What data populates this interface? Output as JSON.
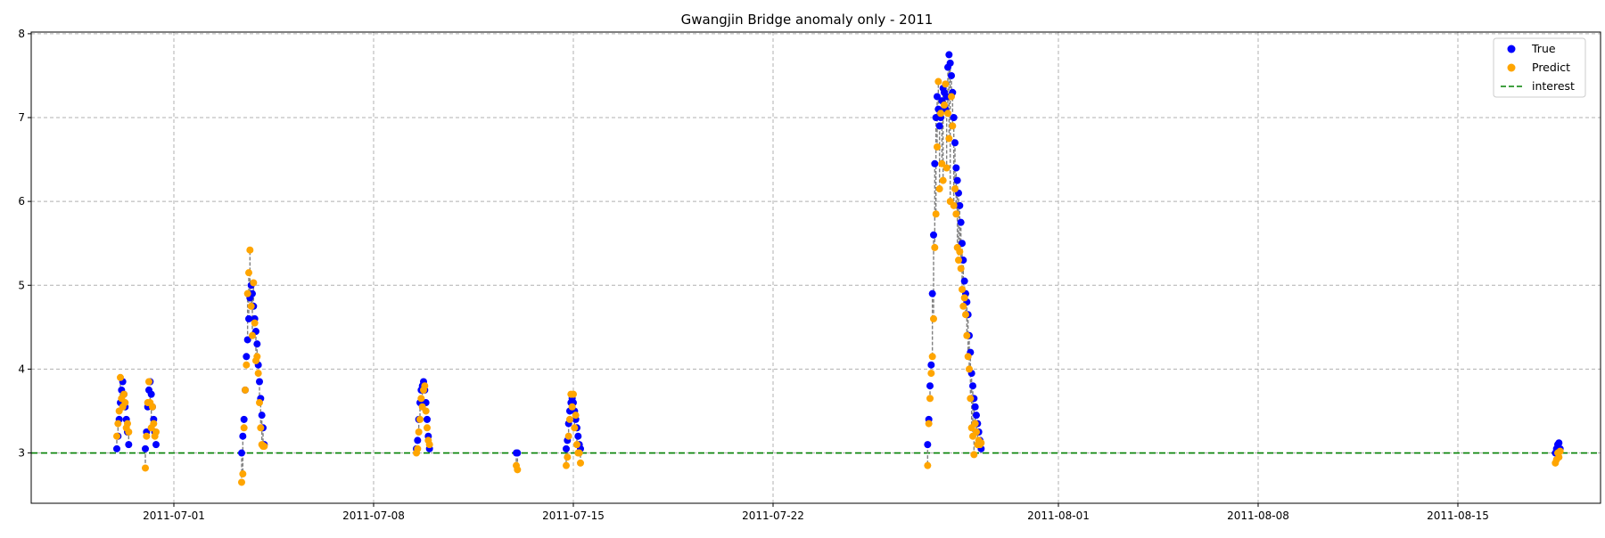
{
  "chart_data": {
    "type": "scatter",
    "title": "Gwangjin Bridge anomaly only - 2011",
    "xlabel": "",
    "ylabel": "",
    "xlim": [
      "2011-06-26",
      "2011-08-20"
    ],
    "ylim": [
      2.4,
      8.02
    ],
    "x_ticks": [
      "2011-07-01",
      "2011-07-08",
      "2011-07-15",
      "2011-07-22",
      "2011-08-01",
      "2011-08-08",
      "2011-08-15"
    ],
    "y_ticks": [
      3,
      4,
      5,
      6,
      7,
      8
    ],
    "grid": true,
    "legend_position": "top-right",
    "threshold": {
      "name": "interest",
      "value": 3.0,
      "color": "#008000"
    },
    "series": [
      {
        "name": "True",
        "color": "#0000ff",
        "points": [
          [
            "2011-06-29 00:00",
            3.05
          ],
          [
            "2011-06-29 01:00",
            3.2
          ],
          [
            "2011-06-29 02:00",
            3.4
          ],
          [
            "2011-06-29 03:00",
            3.6
          ],
          [
            "2011-06-29 04:00",
            3.75
          ],
          [
            "2011-06-29 05:00",
            3.85
          ],
          [
            "2011-06-29 06:00",
            3.7
          ],
          [
            "2011-06-29 07:00",
            3.55
          ],
          [
            "2011-06-29 08:00",
            3.4
          ],
          [
            "2011-06-29 09:00",
            3.25
          ],
          [
            "2011-06-29 10:00",
            3.1
          ],
          [
            "2011-06-30 00:00",
            3.05
          ],
          [
            "2011-06-30 01:00",
            3.25
          ],
          [
            "2011-06-30 02:00",
            3.55
          ],
          [
            "2011-06-30 03:00",
            3.75
          ],
          [
            "2011-06-30 04:00",
            3.85
          ],
          [
            "2011-06-30 05:00",
            3.7
          ],
          [
            "2011-06-30 06:00",
            3.55
          ],
          [
            "2011-06-30 07:00",
            3.4
          ],
          [
            "2011-06-30 08:00",
            3.25
          ],
          [
            "2011-06-30 09:00",
            3.1
          ],
          [
            "2011-07-03 09:00",
            3.0
          ],
          [
            "2011-07-03 10:00",
            3.2
          ],
          [
            "2011-07-03 11:00",
            3.4
          ],
          [
            "2011-07-03 12:00",
            3.75
          ],
          [
            "2011-07-03 13:00",
            4.15
          ],
          [
            "2011-07-03 14:00",
            4.35
          ],
          [
            "2011-07-03 15:00",
            4.6
          ],
          [
            "2011-07-03 16:00",
            4.85
          ],
          [
            "2011-07-03 17:00",
            5.0
          ],
          [
            "2011-07-03 18:00",
            4.9
          ],
          [
            "2011-07-03 19:00",
            4.75
          ],
          [
            "2011-07-03 20:00",
            4.6
          ],
          [
            "2011-07-03 21:00",
            4.45
          ],
          [
            "2011-07-03 22:00",
            4.3
          ],
          [
            "2011-07-03 23:00",
            4.05
          ],
          [
            "2011-07-04 00:00",
            3.85
          ],
          [
            "2011-07-04 01:00",
            3.65
          ],
          [
            "2011-07-04 02:00",
            3.45
          ],
          [
            "2011-07-04 03:00",
            3.3
          ],
          [
            "2011-07-04 04:00",
            3.1
          ],
          [
            "2011-07-09 12:00",
            3.05
          ],
          [
            "2011-07-09 13:00",
            3.15
          ],
          [
            "2011-07-09 14:00",
            3.4
          ],
          [
            "2011-07-09 15:00",
            3.6
          ],
          [
            "2011-07-09 16:00",
            3.75
          ],
          [
            "2011-07-09 17:00",
            3.8
          ],
          [
            "2011-07-09 18:00",
            3.85
          ],
          [
            "2011-07-09 19:00",
            3.75
          ],
          [
            "2011-07-09 20:00",
            3.6
          ],
          [
            "2011-07-09 21:00",
            3.4
          ],
          [
            "2011-07-09 22:00",
            3.2
          ],
          [
            "2011-07-09 23:00",
            3.05
          ],
          [
            "2011-07-13 00:00",
            3.0
          ],
          [
            "2011-07-13 01:00",
            3.0
          ],
          [
            "2011-07-14 18:00",
            3.05
          ],
          [
            "2011-07-14 19:00",
            3.15
          ],
          [
            "2011-07-14 20:00",
            3.35
          ],
          [
            "2011-07-14 21:00",
            3.5
          ],
          [
            "2011-07-14 22:00",
            3.6
          ],
          [
            "2011-07-14 23:00",
            3.65
          ],
          [
            "2011-07-15 00:00",
            3.6
          ],
          [
            "2011-07-15 01:00",
            3.5
          ],
          [
            "2011-07-15 02:00",
            3.4
          ],
          [
            "2011-07-15 03:00",
            3.3
          ],
          [
            "2011-07-15 04:00",
            3.2
          ],
          [
            "2011-07-15 05:00",
            3.1
          ],
          [
            "2011-07-15 06:00",
            3.05
          ],
          [
            "2011-07-27 10:00",
            3.1
          ],
          [
            "2011-07-27 11:00",
            3.4
          ],
          [
            "2011-07-27 12:00",
            3.8
          ],
          [
            "2011-07-27 13:00",
            4.05
          ],
          [
            "2011-07-27 14:00",
            4.9
          ],
          [
            "2011-07-27 15:00",
            5.6
          ],
          [
            "2011-07-27 16:00",
            6.45
          ],
          [
            "2011-07-27 17:00",
            7.0
          ],
          [
            "2011-07-27 18:00",
            7.25
          ],
          [
            "2011-07-27 19:00",
            7.1
          ],
          [
            "2011-07-27 20:00",
            6.9
          ],
          [
            "2011-07-27 21:00",
            7.0
          ],
          [
            "2011-07-27 22:00",
            7.2
          ],
          [
            "2011-07-27 23:00",
            7.35
          ],
          [
            "2011-07-28 00:00",
            7.3
          ],
          [
            "2011-07-28 01:00",
            7.1
          ],
          [
            "2011-07-28 02:00",
            7.25
          ],
          [
            "2011-07-28 03:00",
            7.6
          ],
          [
            "2011-07-28 04:00",
            7.75
          ],
          [
            "2011-07-28 05:00",
            7.65
          ],
          [
            "2011-07-28 06:00",
            7.5
          ],
          [
            "2011-07-28 07:00",
            7.3
          ],
          [
            "2011-07-28 08:00",
            7.0
          ],
          [
            "2011-07-28 09:00",
            6.7
          ],
          [
            "2011-07-28 10:00",
            6.4
          ],
          [
            "2011-07-28 11:00",
            6.25
          ],
          [
            "2011-07-28 12:00",
            6.1
          ],
          [
            "2011-07-28 13:00",
            5.95
          ],
          [
            "2011-07-28 14:00",
            5.75
          ],
          [
            "2011-07-28 15:00",
            5.5
          ],
          [
            "2011-07-28 16:00",
            5.3
          ],
          [
            "2011-07-28 17:00",
            5.05
          ],
          [
            "2011-07-28 18:00",
            4.9
          ],
          [
            "2011-07-28 19:00",
            4.8
          ],
          [
            "2011-07-28 20:00",
            4.65
          ],
          [
            "2011-07-28 21:00",
            4.4
          ],
          [
            "2011-07-28 22:00",
            4.2
          ],
          [
            "2011-07-28 23:00",
            3.95
          ],
          [
            "2011-07-29 00:00",
            3.8
          ],
          [
            "2011-07-29 01:00",
            3.65
          ],
          [
            "2011-07-29 02:00",
            3.55
          ],
          [
            "2011-07-29 03:00",
            3.45
          ],
          [
            "2011-07-29 04:00",
            3.35
          ],
          [
            "2011-07-29 05:00",
            3.25
          ],
          [
            "2011-07-29 06:00",
            3.15
          ],
          [
            "2011-07-29 07:00",
            3.05
          ],
          [
            "2011-08-18 10:00",
            3.0
          ],
          [
            "2011-08-18 11:00",
            3.05
          ],
          [
            "2011-08-18 12:00",
            3.1
          ],
          [
            "2011-08-18 13:00",
            3.12
          ],
          [
            "2011-08-18 14:00",
            3.05
          ]
        ]
      },
      {
        "name": "Predict",
        "color": "#ffa500",
        "points": [
          [
            "2011-06-29 00:00",
            3.2
          ],
          [
            "2011-06-29 01:00",
            3.35
          ],
          [
            "2011-06-29 02:00",
            3.5
          ],
          [
            "2011-06-29 03:00",
            3.9
          ],
          [
            "2011-06-29 04:00",
            3.65
          ],
          [
            "2011-06-29 05:00",
            3.55
          ],
          [
            "2011-06-29 06:00",
            3.7
          ],
          [
            "2011-06-29 07:00",
            3.6
          ],
          [
            "2011-06-29 08:00",
            3.3
          ],
          [
            "2011-06-29 09:00",
            3.35
          ],
          [
            "2011-06-29 10:00",
            3.25
          ],
          [
            "2011-06-30 00:00",
            2.82
          ],
          [
            "2011-06-30 01:00",
            3.2
          ],
          [
            "2011-06-30 02:00",
            3.6
          ],
          [
            "2011-06-30 03:00",
            3.85
          ],
          [
            "2011-06-30 04:00",
            3.6
          ],
          [
            "2011-06-30 05:00",
            3.3
          ],
          [
            "2011-06-30 06:00",
            3.55
          ],
          [
            "2011-06-30 07:00",
            3.35
          ],
          [
            "2011-06-30 08:00",
            3.2
          ],
          [
            "2011-06-30 09:00",
            3.25
          ],
          [
            "2011-07-03 09:00",
            2.65
          ],
          [
            "2011-07-03 10:00",
            2.75
          ],
          [
            "2011-07-03 11:00",
            3.3
          ],
          [
            "2011-07-03 12:00",
            3.75
          ],
          [
            "2011-07-03 13:00",
            4.05
          ],
          [
            "2011-07-03 14:00",
            4.9
          ],
          [
            "2011-07-03 15:00",
            5.15
          ],
          [
            "2011-07-03 16:00",
            5.42
          ],
          [
            "2011-07-03 17:00",
            4.75
          ],
          [
            "2011-07-03 18:00",
            4.4
          ],
          [
            "2011-07-03 19:00",
            5.03
          ],
          [
            "2011-07-03 20:00",
            4.55
          ],
          [
            "2011-07-03 21:00",
            4.1
          ],
          [
            "2011-07-03 22:00",
            4.15
          ],
          [
            "2011-07-03 23:00",
            3.95
          ],
          [
            "2011-07-04 00:00",
            3.6
          ],
          [
            "2011-07-04 01:00",
            3.3
          ],
          [
            "2011-07-04 02:00",
            3.1
          ],
          [
            "2011-07-04 03:00",
            3.08
          ],
          [
            "2011-07-04 04:00",
            3.08
          ],
          [
            "2011-07-09 12:00",
            3.0
          ],
          [
            "2011-07-09 13:00",
            3.05
          ],
          [
            "2011-07-09 14:00",
            3.25
          ],
          [
            "2011-07-09 15:00",
            3.4
          ],
          [
            "2011-07-09 16:00",
            3.65
          ],
          [
            "2011-07-09 17:00",
            3.55
          ],
          [
            "2011-07-09 18:00",
            3.75
          ],
          [
            "2011-07-09 19:00",
            3.8
          ],
          [
            "2011-07-09 20:00",
            3.5
          ],
          [
            "2011-07-09 21:00",
            3.3
          ],
          [
            "2011-07-09 22:00",
            3.15
          ],
          [
            "2011-07-09 23:00",
            3.1
          ],
          [
            "2011-07-13 00:00",
            2.85
          ],
          [
            "2011-07-13 01:00",
            2.8
          ],
          [
            "2011-07-14 18:00",
            2.85
          ],
          [
            "2011-07-14 19:00",
            2.95
          ],
          [
            "2011-07-14 20:00",
            3.2
          ],
          [
            "2011-07-14 21:00",
            3.4
          ],
          [
            "2011-07-14 22:00",
            3.7
          ],
          [
            "2011-07-14 23:00",
            3.55
          ],
          [
            "2011-07-15 00:00",
            3.7
          ],
          [
            "2011-07-15 01:00",
            3.3
          ],
          [
            "2011-07-15 02:00",
            3.45
          ],
          [
            "2011-07-15 03:00",
            3.1
          ],
          [
            "2011-07-15 04:00",
            3.0
          ],
          [
            "2011-07-15 05:00",
            3.0
          ],
          [
            "2011-07-15 06:00",
            2.88
          ],
          [
            "2011-07-27 10:00",
            2.85
          ],
          [
            "2011-07-27 11:00",
            3.35
          ],
          [
            "2011-07-27 12:00",
            3.65
          ],
          [
            "2011-07-27 13:00",
            3.95
          ],
          [
            "2011-07-27 14:00",
            4.15
          ],
          [
            "2011-07-27 15:00",
            4.6
          ],
          [
            "2011-07-27 16:00",
            5.45
          ],
          [
            "2011-07-27 17:00",
            5.85
          ],
          [
            "2011-07-27 18:00",
            6.65
          ],
          [
            "2011-07-27 19:00",
            7.43
          ],
          [
            "2011-07-27 20:00",
            6.15
          ],
          [
            "2011-07-27 21:00",
            7.05
          ],
          [
            "2011-07-27 22:00",
            6.45
          ],
          [
            "2011-07-27 23:00",
            6.25
          ],
          [
            "2011-07-28 00:00",
            7.15
          ],
          [
            "2011-07-28 01:00",
            7.4
          ],
          [
            "2011-07-28 02:00",
            6.4
          ],
          [
            "2011-07-28 03:00",
            7.05
          ],
          [
            "2011-07-28 04:00",
            6.75
          ],
          [
            "2011-07-28 05:00",
            6.0
          ],
          [
            "2011-07-28 06:00",
            7.25
          ],
          [
            "2011-07-28 07:00",
            6.9
          ],
          [
            "2011-07-28 08:00",
            5.95
          ],
          [
            "2011-07-28 09:00",
            6.15
          ],
          [
            "2011-07-28 10:00",
            5.85
          ],
          [
            "2011-07-28 11:00",
            5.45
          ],
          [
            "2011-07-28 12:00",
            5.3
          ],
          [
            "2011-07-28 13:00",
            5.4
          ],
          [
            "2011-07-28 14:00",
            5.2
          ],
          [
            "2011-07-28 15:00",
            4.95
          ],
          [
            "2011-07-28 16:00",
            4.75
          ],
          [
            "2011-07-28 17:00",
            4.85
          ],
          [
            "2011-07-28 18:00",
            4.65
          ],
          [
            "2011-07-28 19:00",
            4.4
          ],
          [
            "2011-07-28 20:00",
            4.15
          ],
          [
            "2011-07-28 21:00",
            4.0
          ],
          [
            "2011-07-28 22:00",
            3.65
          ],
          [
            "2011-07-28 23:00",
            3.3
          ],
          [
            "2011-07-29 00:00",
            3.2
          ],
          [
            "2011-07-29 01:00",
            2.98
          ],
          [
            "2011-07-29 02:00",
            3.35
          ],
          [
            "2011-07-29 03:00",
            3.25
          ],
          [
            "2011-07-29 04:00",
            3.1
          ],
          [
            "2011-07-29 05:00",
            3.15
          ],
          [
            "2011-07-29 06:00",
            3.1
          ],
          [
            "2011-07-29 07:00",
            3.12
          ],
          [
            "2011-08-18 10:00",
            2.88
          ],
          [
            "2011-08-18 11:00",
            2.92
          ],
          [
            "2011-08-18 12:00",
            3.0
          ],
          [
            "2011-08-18 13:00",
            2.95
          ],
          [
            "2011-08-18 14:00",
            3.02
          ]
        ]
      }
    ]
  }
}
